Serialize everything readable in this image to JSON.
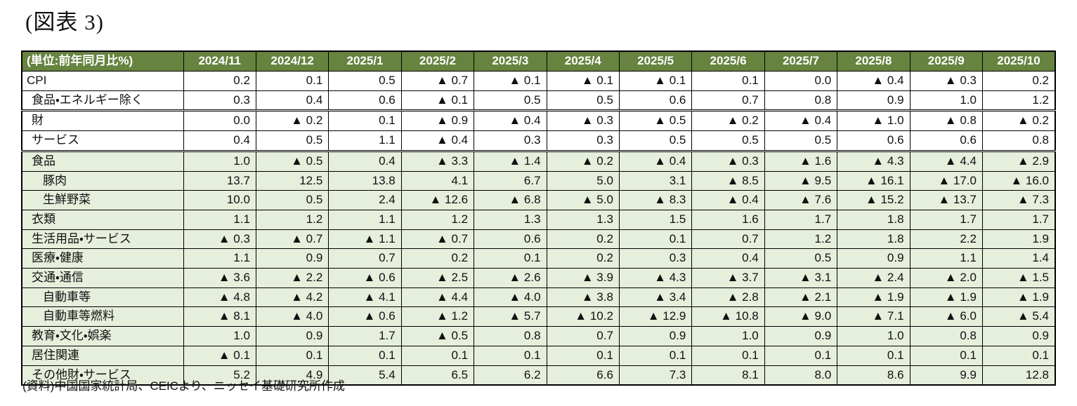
{
  "title": "(図表 3)",
  "footer": "(資料)中国国家統計局、CEICより、ニッセイ基礎研究所作成",
  "colors": {
    "header_bg": "#66833f",
    "header_text": "#ffffff",
    "row_green_bg": "#e6eedc",
    "row_white_bg": "#ffffff",
    "border": "#000000",
    "negative_marker": "▲"
  },
  "chart_data": {
    "type": "table",
    "unit_label": "(単位:前年同月比%)",
    "columns": [
      "2024/11",
      "2024/12",
      "2025/1",
      "2025/2",
      "2025/3",
      "2025/4",
      "2025/5",
      "2025/6",
      "2025/7",
      "2025/8",
      "2025/9",
      "2025/10"
    ],
    "rows": [
      {
        "label": "CPI",
        "indent": 0,
        "bg": "white",
        "separator": "single",
        "values": [
          "0.2",
          "0.1",
          "0.5",
          "▲ 0.7",
          "▲ 0.1",
          "▲ 0.1",
          "▲ 0.1",
          "0.1",
          "0.0",
          "▲ 0.4",
          "▲ 0.3",
          "0.2"
        ]
      },
      {
        "label": "食品・エネルギー除く",
        "indent": 1,
        "bg": "white",
        "separator": "double",
        "values": [
          "0.3",
          "0.4",
          "0.6",
          "▲ 0.1",
          "0.5",
          "0.5",
          "0.6",
          "0.7",
          "0.8",
          "0.9",
          "1.0",
          "1.2"
        ]
      },
      {
        "label": "財",
        "indent": 1,
        "bg": "white",
        "separator": "single",
        "values": [
          "0.0",
          "▲ 0.2",
          "0.1",
          "▲ 0.9",
          "▲ 0.4",
          "▲ 0.3",
          "▲ 0.5",
          "▲ 0.2",
          "▲ 0.4",
          "▲ 1.0",
          "▲ 0.8",
          "▲ 0.2"
        ]
      },
      {
        "label": "サービス",
        "indent": 1,
        "bg": "white",
        "separator": "double",
        "values": [
          "0.4",
          "0.5",
          "1.1",
          "▲ 0.4",
          "0.3",
          "0.3",
          "0.5",
          "0.5",
          "0.5",
          "0.6",
          "0.6",
          "0.8"
        ]
      },
      {
        "label": "食品",
        "indent": 1,
        "bg": "green",
        "separator": "single",
        "values": [
          "1.0",
          "▲ 0.5",
          "0.4",
          "▲ 3.3",
          "▲ 1.4",
          "▲ 0.2",
          "▲ 0.4",
          "▲ 0.3",
          "▲ 1.6",
          "▲ 4.3",
          "▲ 4.4",
          "▲ 2.9"
        ]
      },
      {
        "label": "豚肉",
        "indent": 2,
        "bg": "green",
        "separator": "single",
        "values": [
          "13.7",
          "12.5",
          "13.8",
          "4.1",
          "6.7",
          "5.0",
          "3.1",
          "▲ 8.5",
          "▲ 9.5",
          "▲ 16.1",
          "▲ 17.0",
          "▲ 16.0"
        ]
      },
      {
        "label": "生鮮野菜",
        "indent": 2,
        "bg": "green",
        "separator": "single",
        "values": [
          "10.0",
          "0.5",
          "2.4",
          "▲ 12.6",
          "▲ 6.8",
          "▲ 5.0",
          "▲ 8.3",
          "▲ 0.4",
          "▲ 7.6",
          "▲ 15.2",
          "▲ 13.7",
          "▲ 7.3"
        ]
      },
      {
        "label": "衣類",
        "indent": 1,
        "bg": "green",
        "separator": "single",
        "values": [
          "1.1",
          "1.2",
          "1.1",
          "1.2",
          "1.3",
          "1.3",
          "1.5",
          "1.6",
          "1.7",
          "1.8",
          "1.7",
          "1.7"
        ]
      },
      {
        "label": "生活用品・サービス",
        "indent": 1,
        "bg": "green",
        "separator": "single",
        "values": [
          "▲ 0.3",
          "▲ 0.7",
          "▲ 1.1",
          "▲ 0.7",
          "0.6",
          "0.2",
          "0.1",
          "0.7",
          "1.2",
          "1.8",
          "2.2",
          "1.9"
        ]
      },
      {
        "label": "医療・健康",
        "indent": 1,
        "bg": "green",
        "separator": "single",
        "values": [
          "1.1",
          "0.9",
          "0.7",
          "0.2",
          "0.1",
          "0.2",
          "0.3",
          "0.4",
          "0.5",
          "0.9",
          "1.1",
          "1.4"
        ]
      },
      {
        "label": "交通・通信",
        "indent": 1,
        "bg": "green",
        "separator": "single",
        "values": [
          "▲ 3.6",
          "▲ 2.2",
          "▲ 0.6",
          "▲ 2.5",
          "▲ 2.6",
          "▲ 3.9",
          "▲ 4.3",
          "▲ 3.7",
          "▲ 3.1",
          "▲ 2.4",
          "▲ 2.0",
          "▲ 1.5"
        ]
      },
      {
        "label": "自動車等",
        "indent": 2,
        "bg": "green",
        "separator": "single",
        "values": [
          "▲ 4.8",
          "▲ 4.2",
          "▲ 4.1",
          "▲ 4.4",
          "▲ 4.0",
          "▲ 3.8",
          "▲ 3.4",
          "▲ 2.8",
          "▲ 2.1",
          "▲ 1.9",
          "▲ 1.9",
          "▲ 1.9"
        ]
      },
      {
        "label": "自動車等燃料",
        "indent": 2,
        "bg": "green",
        "separator": "single",
        "values": [
          "▲ 8.1",
          "▲ 4.0",
          "▲ 0.6",
          "▲ 1.2",
          "▲ 5.7",
          "▲ 10.2",
          "▲ 12.9",
          "▲ 10.8",
          "▲ 9.0",
          "▲ 7.1",
          "▲ 6.0",
          "▲ 5.4"
        ]
      },
      {
        "label": "教育・文化・娯楽",
        "indent": 1,
        "bg": "green",
        "separator": "single",
        "values": [
          "1.0",
          "0.9",
          "1.7",
          "▲ 0.5",
          "0.8",
          "0.7",
          "0.9",
          "1.0",
          "0.9",
          "1.0",
          "0.8",
          "0.9"
        ]
      },
      {
        "label": "居住関連",
        "indent": 1,
        "bg": "green",
        "separator": "single",
        "values": [
          "▲ 0.1",
          "0.1",
          "0.1",
          "0.1",
          "0.1",
          "0.1",
          "0.1",
          "0.1",
          "0.1",
          "0.1",
          "0.1",
          "0.1"
        ]
      },
      {
        "label": "その他財・サービス",
        "indent": 1,
        "bg": "green",
        "separator": "single",
        "values": [
          "5.2",
          "4.9",
          "5.4",
          "6.5",
          "6.2",
          "6.6",
          "7.3",
          "8.1",
          "8.0",
          "8.6",
          "9.9",
          "12.8"
        ]
      }
    ]
  }
}
